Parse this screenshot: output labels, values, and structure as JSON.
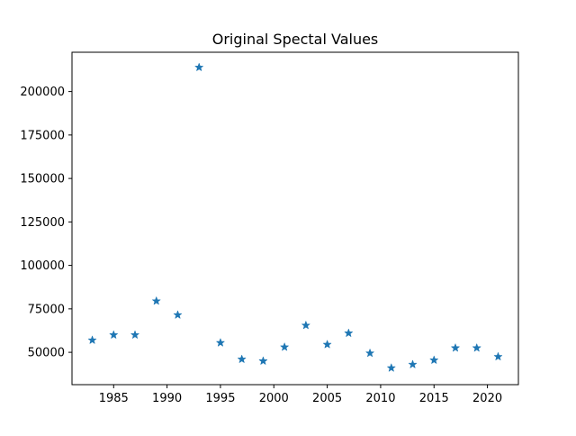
{
  "chart_data": {
    "type": "scatter",
    "title": "Original Spectal Values",
    "xlabel": "",
    "ylabel": "",
    "marker": "star",
    "marker_color": "#1f77b4",
    "grid": false,
    "xlim": [
      1981.1,
      2022.9
    ],
    "ylim": [
      31400,
      222600
    ],
    "x_ticks": [
      1985,
      1990,
      1995,
      2000,
      2005,
      2010,
      2015,
      2020
    ],
    "y_ticks": [
      50000,
      75000,
      100000,
      125000,
      150000,
      175000,
      200000
    ],
    "x": [
      1983,
      1985,
      1987,
      1989,
      1991,
      1993,
      1995,
      1997,
      1999,
      2001,
      2003,
      2005,
      2007,
      2009,
      2011,
      2013,
      2015,
      2017,
      2019,
      2021
    ],
    "y": [
      57000,
      60000,
      60000,
      79500,
      71500,
      213900,
      55500,
      46000,
      45000,
      53000,
      65500,
      54500,
      61000,
      49500,
      41000,
      43000,
      45500,
      52500,
      52500,
      47500
    ]
  }
}
